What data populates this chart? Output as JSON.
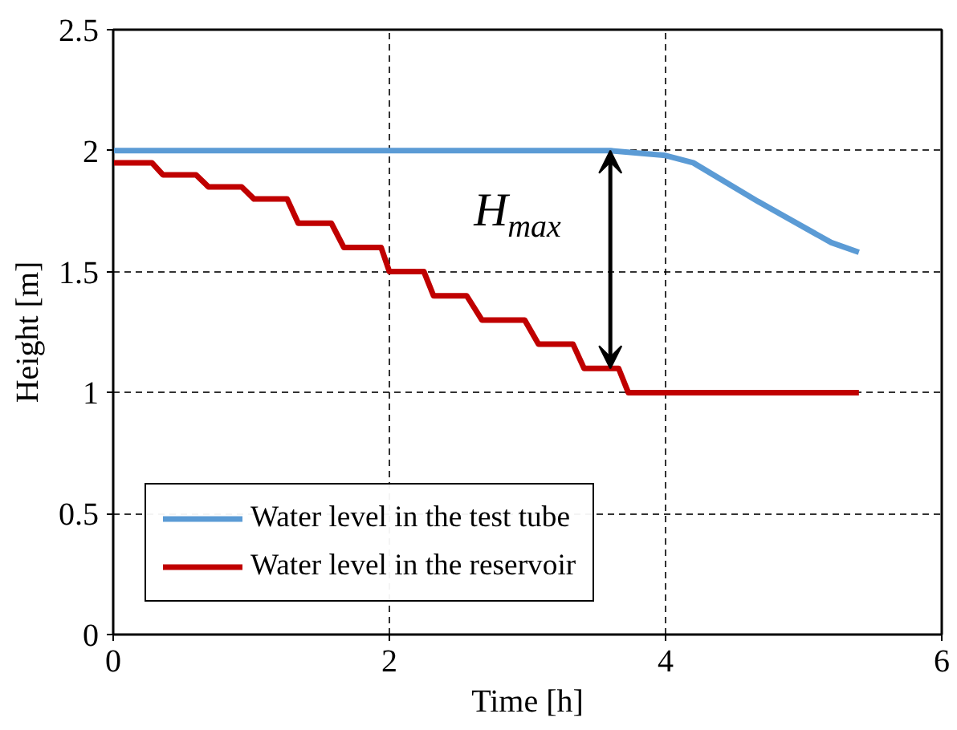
{
  "chart_data": {
    "type": "line",
    "xlabel": "Time [h]",
    "ylabel": "Height [m]",
    "xlim": [
      0,
      6
    ],
    "ylim": [
      0,
      2.5
    ],
    "xticks": [
      0,
      2,
      4,
      6
    ],
    "yticks": [
      0,
      0.5,
      1,
      1.5,
      2,
      2.5
    ],
    "grid": true,
    "legend": "bottom left",
    "line_style": "solid",
    "marker": "none",
    "series": [
      {
        "name": "Water level in the test tube",
        "color": "#5b9bd5",
        "x": [
          0,
          3.6,
          4.0,
          4.2,
          4.67,
          5.2,
          5.4
        ],
        "values": [
          2.0,
          2.0,
          1.98,
          1.95,
          1.79,
          1.62,
          1.58
        ]
      },
      {
        "name": "Water level in the reservoir",
        "color": "#c00000",
        "x": [
          0,
          0.28,
          0.36,
          0.6,
          0.69,
          0.93,
          1.02,
          1.26,
          1.34,
          1.58,
          1.67,
          1.94,
          2.0,
          2.25,
          2.32,
          2.56,
          2.67,
          2.98,
          3.08,
          3.33,
          3.41,
          3.66,
          3.73,
          5.4
        ],
        "values": [
          1.95,
          1.95,
          1.9,
          1.9,
          1.85,
          1.85,
          1.8,
          1.8,
          1.7,
          1.7,
          1.6,
          1.6,
          1.5,
          1.5,
          1.4,
          1.4,
          1.3,
          1.3,
          1.2,
          1.2,
          1.1,
          1.1,
          1.0,
          1.0
        ]
      }
    ],
    "annotations": [
      "H$_{max}$"
    ]
  }
}
